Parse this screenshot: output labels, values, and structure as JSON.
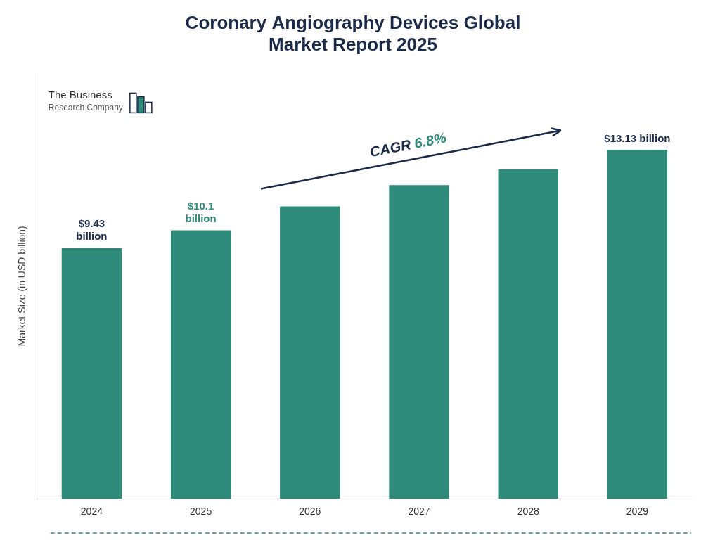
{
  "chart_data": {
    "type": "bar",
    "title": "Coronary Angiography Devices Global\nMarket Report 2025",
    "categories": [
      "2024",
      "2025",
      "2026",
      "2027",
      "2028",
      "2029"
    ],
    "values": [
      9.43,
      10.1,
      11.0,
      11.8,
      12.4,
      13.13
    ],
    "color": "#2e8b7a",
    "ylabel": "Market Size (in USD billion)",
    "ylim": [
      0,
      16.0
    ],
    "yticks": [],
    "grid": false,
    "tick_labels": "x",
    "annotations": [
      {
        "text": "$9.43\nbillion",
        "category": "2024",
        "color": "#1a2a4a"
      },
      {
        "text": "$10.1\nbillion",
        "category": "2025",
        "color": "#2e8b7a"
      },
      {
        "text": "$13.13 billion",
        "category": "2029",
        "color": "#1a2a4a"
      },
      {
        "parts": [
          {
            "text": "CAGR ",
            "color": "#1a2a4a"
          },
          {
            "text": "6.8%",
            "color": "#2e8b7a"
          }
        ]
      },
      {
        "lines": [
          {
            "text": "The Business",
            "color": "#333333"
          },
          {
            "text": "Research Company",
            "color": "#555555"
          }
        ]
      }
    ]
  }
}
